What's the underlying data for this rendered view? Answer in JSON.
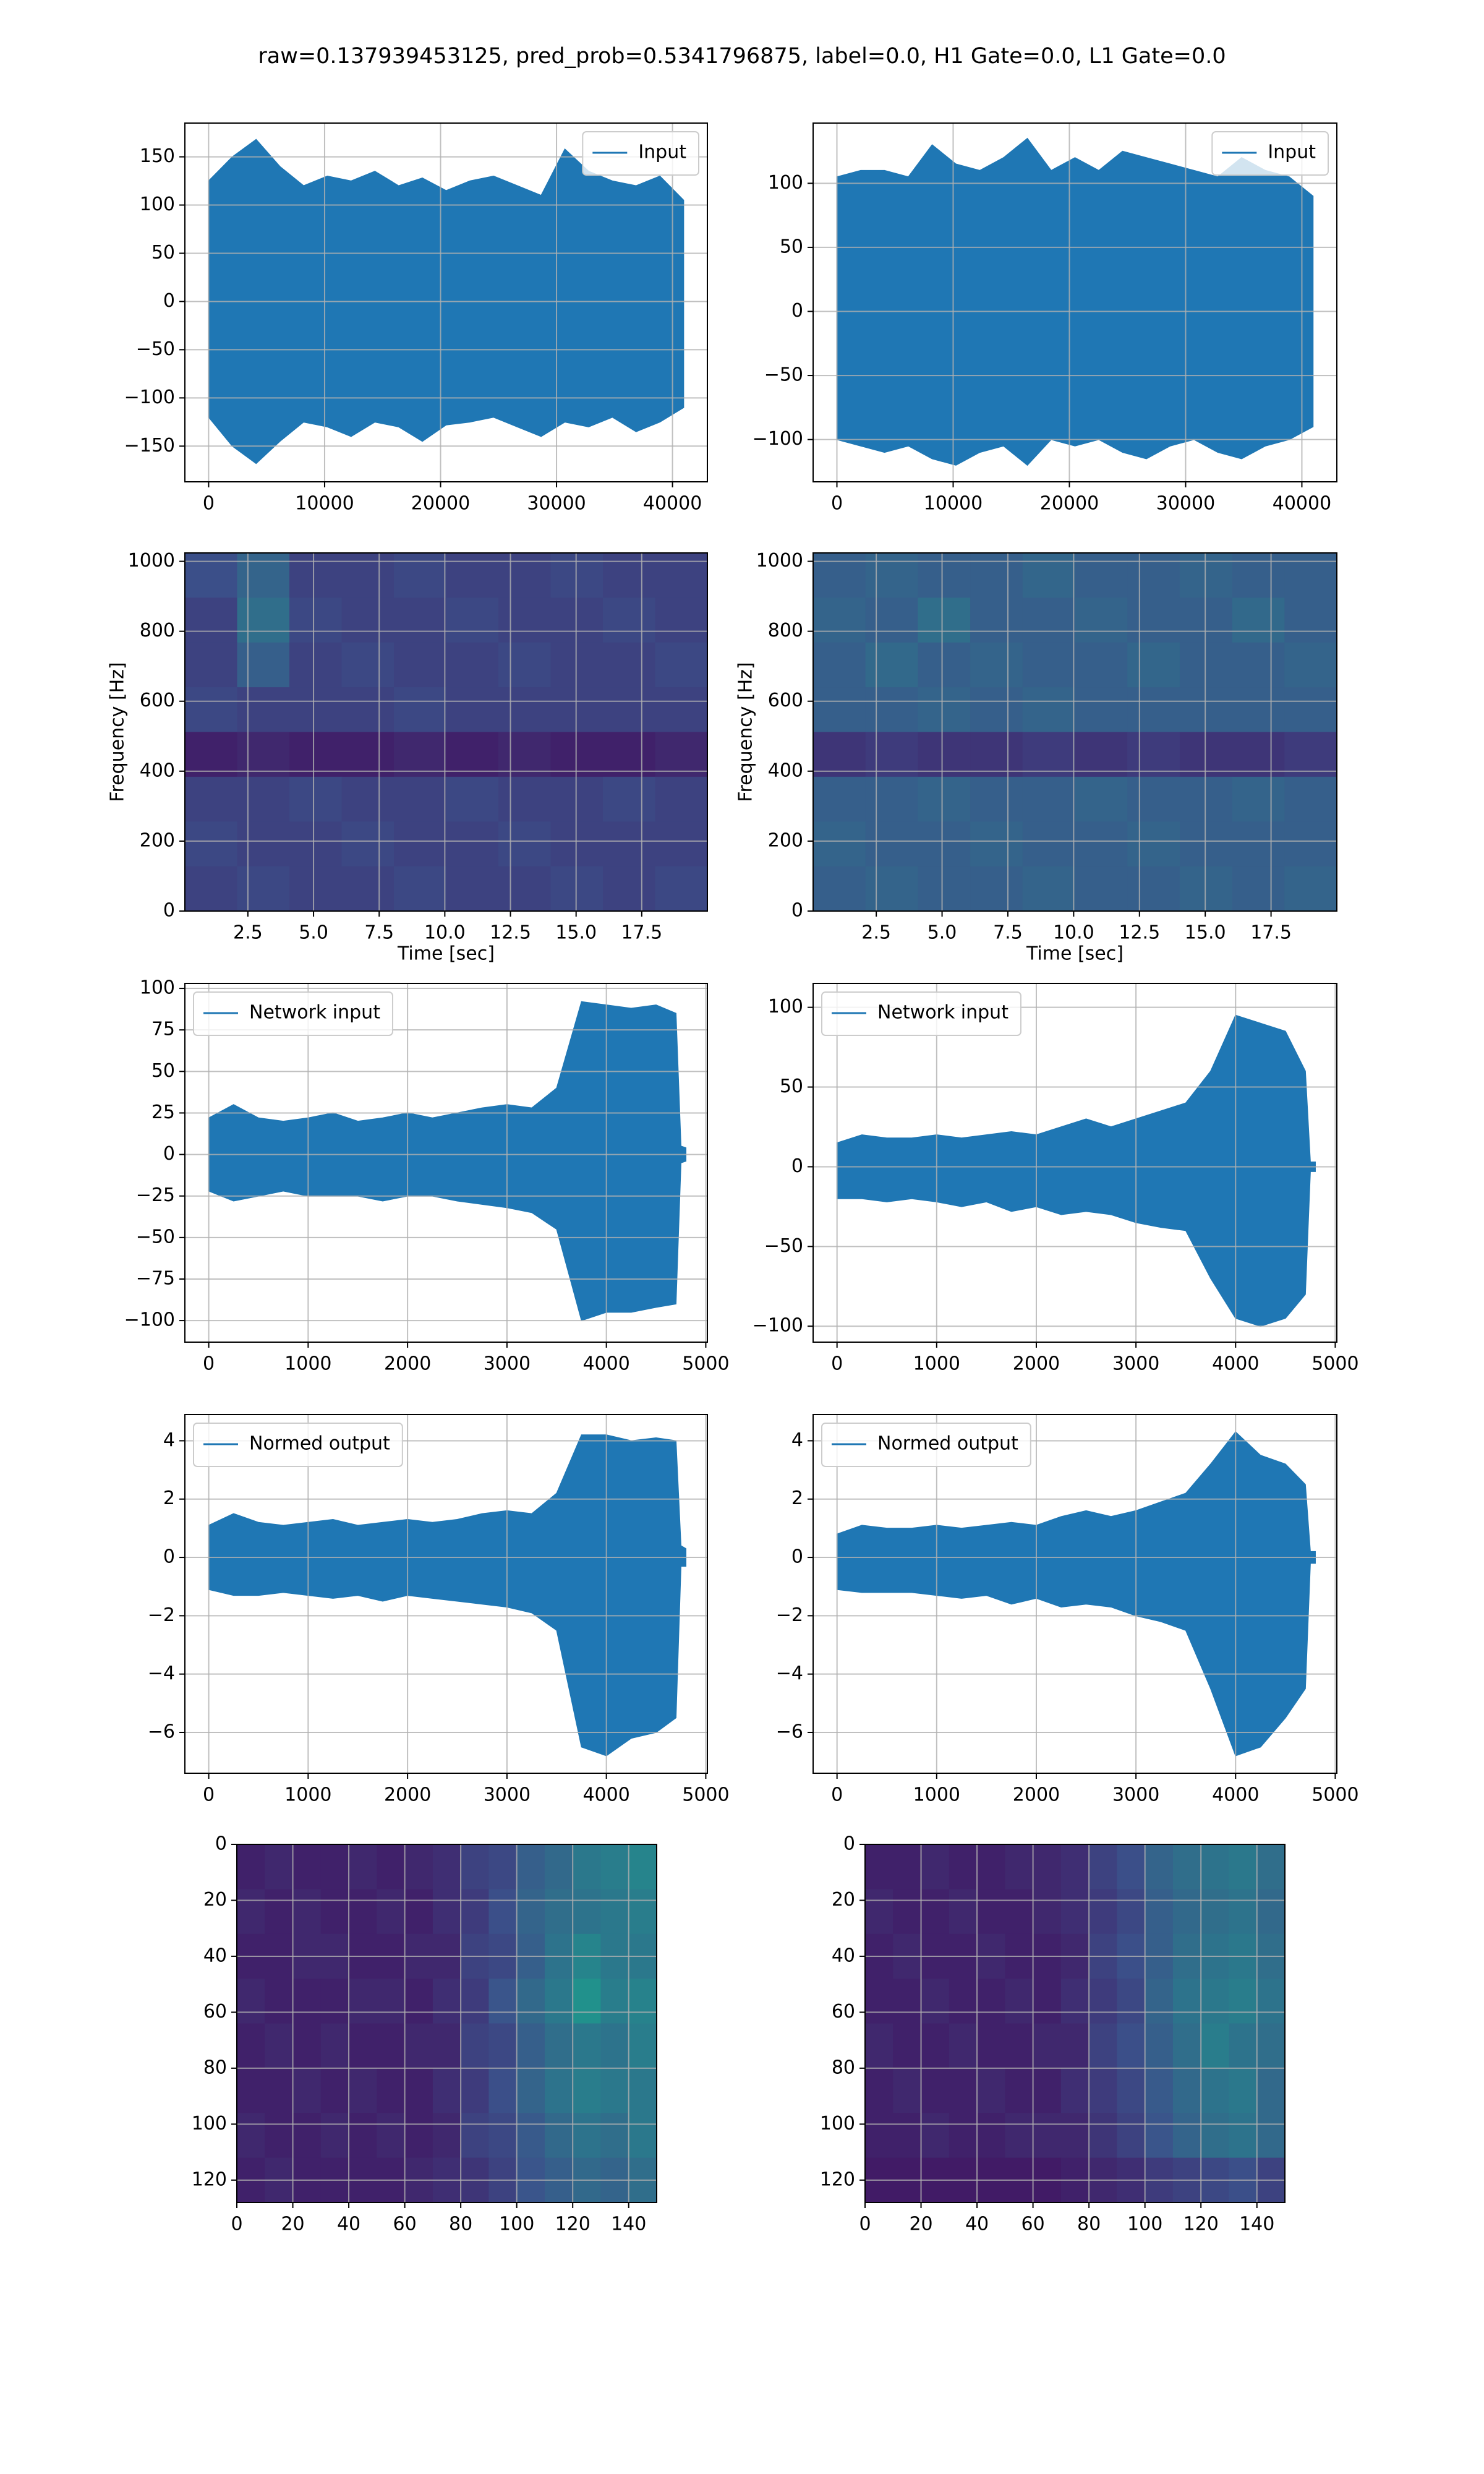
{
  "title": "raw=0.137939453125, pred_prob=0.5341796875, label=0.0, H1 Gate=0.0, L1 Gate=0.0",
  "chart_data": [
    {
      "type": "band",
      "legend": "upper right",
      "grid": true,
      "x": [
        0,
        2048,
        4096,
        6144,
        8192,
        10240,
        12288,
        14336,
        16384,
        18432,
        20480,
        22528,
        24576,
        26624,
        28672,
        30720,
        32768,
        34816,
        36864,
        38912,
        40960
      ],
      "series": [
        {
          "name": "Input",
          "color": "#1f77b4",
          "high": [
            125,
            150,
            168,
            140,
            120,
            130,
            125,
            135,
            120,
            128,
            115,
            125,
            130,
            120,
            110,
            158,
            135,
            125,
            120,
            130,
            105
          ],
          "low": [
            -120,
            -150,
            -168,
            -145,
            -125,
            -130,
            -140,
            -125,
            -130,
            -145,
            -128,
            -125,
            -120,
            -130,
            -140,
            -125,
            -130,
            -120,
            -135,
            -125,
            -110
          ]
        }
      ],
      "xlim": [
        -2048,
        43008
      ],
      "ylim": [
        -187,
        185
      ],
      "xticks": [
        0,
        10000,
        20000,
        30000,
        40000
      ],
      "yticks": [
        {
          "value": -150,
          "label": "−150"
        },
        {
          "value": -100,
          "label": "−100"
        },
        {
          "value": -50,
          "label": "−50"
        },
        0,
        50,
        100,
        150
      ]
    },
    {
      "type": "band",
      "legend": "upper right",
      "grid": true,
      "x": [
        0,
        2048,
        4096,
        6144,
        8192,
        10240,
        12288,
        14336,
        16384,
        18432,
        20480,
        22528,
        24576,
        26624,
        28672,
        30720,
        32768,
        34816,
        36864,
        38912,
        40960
      ],
      "series": [
        {
          "name": "Input",
          "color": "#1f77b4",
          "high": [
            105,
            110,
            110,
            105,
            130,
            115,
            110,
            120,
            135,
            110,
            120,
            110,
            125,
            120,
            115,
            110,
            105,
            120,
            110,
            105,
            90
          ],
          "low": [
            -100,
            -105,
            -110,
            -105,
            -115,
            -120,
            -110,
            -105,
            -120,
            -100,
            -105,
            -100,
            -110,
            -115,
            -105,
            -100,
            -110,
            -115,
            -105,
            -100,
            -90
          ]
        }
      ],
      "xlim": [
        -2048,
        43008
      ],
      "ylim": [
        -133,
        147
      ],
      "xticks": [
        0,
        10000,
        20000,
        30000,
        40000
      ],
      "yticks": [
        {
          "value": -100,
          "label": "−100"
        },
        {
          "value": -50,
          "label": "−50"
        },
        0,
        50,
        100
      ]
    },
    {
      "type": "heatmap",
      "cmap": "viridis",
      "grid": true,
      "xlabel": "Time [sec]",
      "ylabel": "Frequency [Hz]",
      "xlim": [
        0.1,
        20
      ],
      "ylim": [
        0,
        1024
      ],
      "xticks": [
        2.5,
        {
          "value": 5,
          "label": "5.0"
        },
        7.5,
        {
          "value": 10,
          "label": "10.0"
        },
        12.5,
        {
          "value": 15,
          "label": "15.0"
        },
        17.5
      ],
      "yticks": [
        0,
        200,
        400,
        600,
        800,
        1000
      ],
      "z": [
        [
          0.24,
          0.32,
          0.2,
          0.2,
          0.22,
          0.2,
          0.2,
          0.22,
          0.2,
          0.2
        ],
        [
          0.2,
          0.36,
          0.22,
          0.2,
          0.2,
          0.22,
          0.2,
          0.2,
          0.22,
          0.2
        ],
        [
          0.2,
          0.3,
          0.2,
          0.22,
          0.2,
          0.2,
          0.22,
          0.2,
          0.2,
          0.22
        ],
        [
          0.22,
          0.2,
          0.2,
          0.2,
          0.22,
          0.2,
          0.2,
          0.2,
          0.2,
          0.2
        ],
        [
          0.1,
          0.12,
          0.1,
          0.1,
          0.12,
          0.1,
          0.12,
          0.1,
          0.1,
          0.12
        ],
        [
          0.2,
          0.2,
          0.22,
          0.2,
          0.2,
          0.22,
          0.2,
          0.2,
          0.22,
          0.2
        ],
        [
          0.22,
          0.2,
          0.2,
          0.22,
          0.2,
          0.2,
          0.22,
          0.2,
          0.2,
          0.2
        ],
        [
          0.2,
          0.22,
          0.2,
          0.2,
          0.22,
          0.2,
          0.2,
          0.22,
          0.2,
          0.22
        ]
      ]
    },
    {
      "type": "heatmap",
      "cmap": "viridis",
      "grid": true,
      "xlabel": "Time [sec]",
      "ylabel": "Frequency [Hz]",
      "xlim": [
        0.1,
        20
      ],
      "ylim": [
        0,
        1024
      ],
      "xticks": [
        2.5,
        {
          "value": 5,
          "label": "5.0"
        },
        7.5,
        {
          "value": 10,
          "label": "10.0"
        },
        12.5,
        {
          "value": 15,
          "label": "15.0"
        },
        17.5
      ],
      "yticks": [
        0,
        200,
        400,
        600,
        800,
        1000
      ],
      "z": [
        [
          0.3,
          0.32,
          0.3,
          0.3,
          0.33,
          0.3,
          0.3,
          0.32,
          0.3,
          0.3
        ],
        [
          0.32,
          0.3,
          0.36,
          0.3,
          0.3,
          0.32,
          0.3,
          0.3,
          0.34,
          0.3
        ],
        [
          0.3,
          0.34,
          0.3,
          0.32,
          0.3,
          0.3,
          0.33,
          0.3,
          0.3,
          0.32
        ],
        [
          0.3,
          0.3,
          0.32,
          0.3,
          0.32,
          0.3,
          0.3,
          0.3,
          0.3,
          0.3
        ],
        [
          0.16,
          0.18,
          0.16,
          0.16,
          0.18,
          0.16,
          0.18,
          0.16,
          0.16,
          0.18
        ],
        [
          0.3,
          0.3,
          0.32,
          0.3,
          0.3,
          0.32,
          0.3,
          0.3,
          0.32,
          0.3
        ],
        [
          0.32,
          0.3,
          0.3,
          0.32,
          0.3,
          0.3,
          0.32,
          0.3,
          0.3,
          0.3
        ],
        [
          0.3,
          0.32,
          0.3,
          0.3,
          0.32,
          0.3,
          0.3,
          0.32,
          0.3,
          0.32
        ]
      ]
    },
    {
      "type": "band",
      "legend": "upper left",
      "grid": true,
      "x": [
        0,
        250,
        500,
        750,
        1000,
        1250,
        1500,
        1750,
        2000,
        2250,
        2500,
        2750,
        3000,
        3250,
        3500,
        3750,
        4000,
        4250,
        4500,
        4700,
        4750,
        4800
      ],
      "series": [
        {
          "name": "Network input",
          "color": "#1f77b4",
          "high": [
            22,
            30,
            22,
            20,
            22,
            25,
            20,
            22,
            25,
            22,
            25,
            28,
            30,
            28,
            40,
            92,
            90,
            88,
            90,
            85,
            5,
            4
          ],
          "low": [
            -22,
            -28,
            -25,
            -22,
            -25,
            -25,
            -25,
            -28,
            -25,
            -25,
            -28,
            -30,
            -32,
            -35,
            -45,
            -100,
            -95,
            -95,
            -92,
            -90,
            -5,
            -4
          ]
        }
      ],
      "xlim": [
        -240,
        5016
      ],
      "ylim": [
        -113,
        103
      ],
      "xticks": [
        0,
        1000,
        2000,
        3000,
        4000,
        5000
      ],
      "yticks": [
        {
          "value": -100,
          "label": "−100"
        },
        {
          "value": -75,
          "label": "−75"
        },
        {
          "value": -50,
          "label": "−50"
        },
        {
          "value": -25,
          "label": "−25"
        },
        0,
        25,
        50,
        75,
        100
      ]
    },
    {
      "type": "band",
      "legend": "upper left",
      "grid": true,
      "x": [
        0,
        250,
        500,
        750,
        1000,
        1250,
        1500,
        1750,
        2000,
        2250,
        2500,
        2750,
        3000,
        3250,
        3500,
        3750,
        4000,
        4250,
        4500,
        4700,
        4750,
        4800
      ],
      "series": [
        {
          "name": "Network input",
          "color": "#1f77b4",
          "high": [
            15,
            20,
            18,
            18,
            20,
            18,
            20,
            22,
            20,
            25,
            30,
            25,
            30,
            35,
            40,
            60,
            95,
            90,
            85,
            60,
            3,
            3
          ],
          "low": [
            -20,
            -20,
            -22,
            -20,
            -22,
            -25,
            -22,
            -28,
            -25,
            -30,
            -28,
            -30,
            -35,
            -38,
            -40,
            -70,
            -95,
            -100,
            -95,
            -80,
            -3,
            -3
          ]
        }
      ],
      "xlim": [
        -240,
        5016
      ],
      "ylim": [
        -110,
        115
      ],
      "xticks": [
        0,
        1000,
        2000,
        3000,
        4000,
        5000
      ],
      "yticks": [
        {
          "value": -100,
          "label": "−100"
        },
        {
          "value": -50,
          "label": "−50"
        },
        0,
        50,
        100
      ]
    },
    {
      "type": "band",
      "legend": "upper left",
      "grid": true,
      "x": [
        0,
        250,
        500,
        750,
        1000,
        1250,
        1500,
        1750,
        2000,
        2250,
        2500,
        2750,
        3000,
        3250,
        3500,
        3750,
        4000,
        4250,
        4500,
        4700,
        4750,
        4800
      ],
      "series": [
        {
          "name": "Normed output",
          "color": "#1f77b4",
          "high": [
            1.1,
            1.5,
            1.2,
            1.1,
            1.2,
            1.3,
            1.1,
            1.2,
            1.3,
            1.2,
            1.3,
            1.5,
            1.6,
            1.5,
            2.2,
            4.2,
            4.2,
            4.0,
            4.1,
            4.0,
            0.4,
            0.3
          ],
          "low": [
            -1.1,
            -1.3,
            -1.3,
            -1.2,
            -1.3,
            -1.4,
            -1.3,
            -1.5,
            -1.3,
            -1.4,
            -1.5,
            -1.6,
            -1.7,
            -1.9,
            -2.5,
            -6.5,
            -6.8,
            -6.2,
            -6.0,
            -5.5,
            -0.3,
            -0.3
          ]
        }
      ],
      "xlim": [
        -240,
        5016
      ],
      "ylim": [
        -7.4,
        4.9
      ],
      "xticks": [
        0,
        1000,
        2000,
        3000,
        4000,
        5000
      ],
      "yticks": [
        {
          "value": -6,
          "label": "−6"
        },
        {
          "value": -4,
          "label": "−4"
        },
        {
          "value": -2,
          "label": "−2"
        },
        0,
        2,
        4
      ]
    },
    {
      "type": "band",
      "legend": "upper left",
      "grid": true,
      "x": [
        0,
        250,
        500,
        750,
        1000,
        1250,
        1500,
        1750,
        2000,
        2250,
        2500,
        2750,
        3000,
        3250,
        3500,
        3750,
        4000,
        4250,
        4500,
        4700,
        4750,
        4800
      ],
      "series": [
        {
          "name": "Normed output",
          "color": "#1f77b4",
          "high": [
            0.8,
            1.1,
            1.0,
            1.0,
            1.1,
            1.0,
            1.1,
            1.2,
            1.1,
            1.4,
            1.6,
            1.4,
            1.6,
            1.9,
            2.2,
            3.2,
            4.3,
            3.5,
            3.2,
            2.5,
            0.2,
            0.2
          ],
          "low": [
            -1.1,
            -1.2,
            -1.2,
            -1.2,
            -1.3,
            -1.4,
            -1.3,
            -1.6,
            -1.4,
            -1.7,
            -1.6,
            -1.7,
            -2.0,
            -2.2,
            -2.5,
            -4.5,
            -6.8,
            -6.5,
            -5.5,
            -4.5,
            -0.2,
            -0.2
          ]
        }
      ],
      "xlim": [
        -240,
        5016
      ],
      "ylim": [
        -7.4,
        4.9
      ],
      "xticks": [
        0,
        1000,
        2000,
        3000,
        4000,
        5000
      ],
      "yticks": [
        {
          "value": -6,
          "label": "−6"
        },
        {
          "value": -4,
          "label": "−4"
        },
        {
          "value": -2,
          "label": "−2"
        },
        0,
        2,
        4
      ]
    },
    {
      "type": "heatmap",
      "cmap": "viridis",
      "grid": true,
      "xlim": [
        0,
        150
      ],
      "ylim": [
        128,
        0
      ],
      "xticks": [
        0,
        20,
        40,
        60,
        80,
        100,
        120,
        140
      ],
      "yticks": [
        0,
        20,
        40,
        60,
        80,
        100,
        120
      ],
      "z": [
        [
          0.1,
          0.12,
          0.1,
          0.1,
          0.12,
          0.1,
          0.12,
          0.14,
          0.2,
          0.22,
          0.3,
          0.34,
          0.4,
          0.42,
          0.45
        ],
        [
          0.12,
          0.1,
          0.12,
          0.1,
          0.1,
          0.12,
          0.1,
          0.14,
          0.18,
          0.24,
          0.32,
          0.36,
          0.38,
          0.4,
          0.42
        ],
        [
          0.1,
          0.1,
          0.12,
          0.12,
          0.1,
          0.1,
          0.12,
          0.12,
          0.2,
          0.22,
          0.3,
          0.38,
          0.45,
          0.4,
          0.4
        ],
        [
          0.12,
          0.1,
          0.1,
          0.1,
          0.12,
          0.12,
          0.1,
          0.14,
          0.18,
          0.26,
          0.34,
          0.4,
          0.5,
          0.42,
          0.44
        ],
        [
          0.1,
          0.12,
          0.1,
          0.12,
          0.1,
          0.1,
          0.12,
          0.12,
          0.2,
          0.22,
          0.3,
          0.36,
          0.4,
          0.38,
          0.42
        ],
        [
          0.1,
          0.1,
          0.12,
          0.1,
          0.12,
          0.1,
          0.1,
          0.14,
          0.18,
          0.24,
          0.32,
          0.38,
          0.42,
          0.4,
          0.4
        ],
        [
          0.12,
          0.1,
          0.1,
          0.12,
          0.1,
          0.12,
          0.1,
          0.12,
          0.2,
          0.22,
          0.28,
          0.34,
          0.38,
          0.36,
          0.4
        ],
        [
          0.1,
          0.12,
          0.1,
          0.1,
          0.1,
          0.1,
          0.12,
          0.14,
          0.16,
          0.2,
          0.26,
          0.3,
          0.34,
          0.32,
          0.36
        ]
      ]
    },
    {
      "type": "heatmap",
      "cmap": "viridis",
      "grid": true,
      "xlim": [
        0,
        150
      ],
      "ylim": [
        128,
        0
      ],
      "xticks": [
        0,
        20,
        40,
        60,
        80,
        100,
        120,
        140
      ],
      "yticks": [
        0,
        20,
        40,
        60,
        80,
        100,
        120
      ],
      "z": [
        [
          0.1,
          0.1,
          0.12,
          0.1,
          0.1,
          0.12,
          0.12,
          0.14,
          0.2,
          0.24,
          0.32,
          0.36,
          0.38,
          0.4,
          0.36
        ],
        [
          0.12,
          0.1,
          0.1,
          0.12,
          0.1,
          0.1,
          0.12,
          0.14,
          0.18,
          0.22,
          0.3,
          0.34,
          0.36,
          0.38,
          0.34
        ],
        [
          0.1,
          0.12,
          0.1,
          0.1,
          0.12,
          0.1,
          0.1,
          0.12,
          0.2,
          0.24,
          0.3,
          0.36,
          0.38,
          0.4,
          0.36
        ],
        [
          0.1,
          0.1,
          0.12,
          0.1,
          0.1,
          0.12,
          0.1,
          0.14,
          0.18,
          0.22,
          0.32,
          0.38,
          0.4,
          0.42,
          0.38
        ],
        [
          0.12,
          0.1,
          0.1,
          0.12,
          0.1,
          0.1,
          0.12,
          0.12,
          0.2,
          0.24,
          0.3,
          0.36,
          0.42,
          0.38,
          0.36
        ],
        [
          0.1,
          0.12,
          0.1,
          0.1,
          0.12,
          0.1,
          0.1,
          0.14,
          0.18,
          0.22,
          0.28,
          0.34,
          0.38,
          0.4,
          0.34
        ],
        [
          0.1,
          0.1,
          0.12,
          0.1,
          0.1,
          0.12,
          0.12,
          0.12,
          0.16,
          0.2,
          0.26,
          0.32,
          0.36,
          0.38,
          0.34
        ],
        [
          0.08,
          0.08,
          0.08,
          0.08,
          0.08,
          0.08,
          0.08,
          0.1,
          0.12,
          0.14,
          0.18,
          0.2,
          0.22,
          0.24,
          0.2
        ]
      ]
    }
  ]
}
